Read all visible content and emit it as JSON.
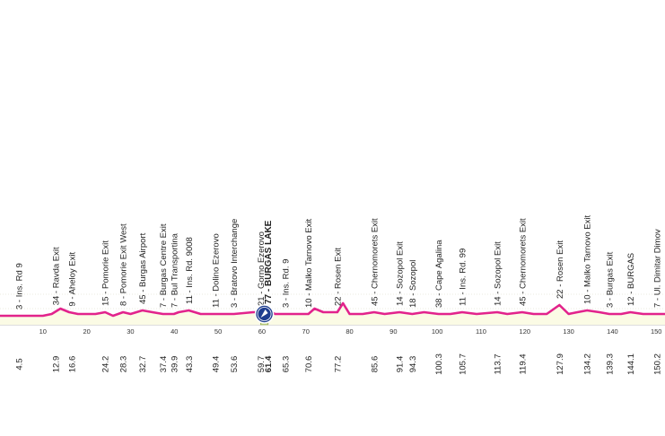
{
  "chart_data": {
    "type": "area",
    "xlim": [
      0,
      152
    ],
    "x_ticks": [
      10,
      20,
      30,
      40,
      50,
      60,
      70,
      80,
      90,
      100,
      110,
      120,
      130,
      140,
      150
    ],
    "profile": {
      "x": [
        0,
        6,
        10,
        12,
        14,
        16,
        18,
        20,
        22,
        24.2,
        26,
        28.3,
        30,
        32.7,
        35,
        37.4,
        39.9,
        41,
        43.3,
        46,
        49.4,
        53.6,
        58,
        59.7,
        61.4,
        63,
        65.3,
        68,
        70.6,
        72,
        74,
        77.2,
        78.5,
        80,
        83,
        85.6,
        88,
        91.4,
        94.3,
        97,
        100.3,
        103,
        105.7,
        109,
        113.7,
        116,
        119.4,
        122,
        125,
        127.9,
        130,
        132,
        134.2,
        137,
        139.3,
        142,
        144.1,
        147,
        150.2,
        152
      ],
      "y": [
        5,
        5,
        5,
        6,
        9,
        7,
        6,
        6,
        6,
        7,
        5,
        7,
        6,
        8,
        7,
        6,
        6,
        7,
        8,
        6,
        6,
        6,
        7,
        7,
        8,
        6,
        6,
        6,
        6,
        9,
        7,
        7,
        12,
        6,
        6,
        7,
        6,
        7,
        6,
        7,
        6,
        6,
        7,
        6,
        7,
        6,
        7,
        6,
        6,
        11,
        6,
        7,
        8,
        7,
        6,
        6,
        7,
        6,
        6,
        6
      ],
      "ylim": [
        0,
        40
      ],
      "color": "#e2238c",
      "fill": "#fbfbe5"
    },
    "highlight": {
      "x_start": 59.7,
      "x_end": 61.4,
      "color": "#c8dd8e",
      "badge_icon": "sprint-finish-icon"
    },
    "waypoints": [
      {
        "km": "4.5",
        "x": 4.5,
        "name": "3 - Ins. Rd 9"
      },
      {
        "km": "12.9",
        "x": 12.9,
        "name": "34 - Ravda Exit"
      },
      {
        "km": "16.6",
        "x": 16.6,
        "name": "9 - Aheloy Exit"
      },
      {
        "km": "24.2",
        "x": 24.2,
        "name": "15 - Pomorie Exit"
      },
      {
        "km": "28.3",
        "x": 28.3,
        "name": "8 - Pomorie Exit West"
      },
      {
        "km": "32.7",
        "x": 32.7,
        "name": "45 - Burgas Airport"
      },
      {
        "km": "37.4",
        "x": 37.4,
        "name": "7 - Burgas Centre Exit"
      },
      {
        "km": "39.9",
        "x": 39.9,
        "name": "7 - Bul Transportina"
      },
      {
        "km": "43.3",
        "x": 43.3,
        "name": "11 - Ins. Rd. 9008"
      },
      {
        "km": "49.4",
        "x": 49.4,
        "name": "11 - Dolino Ezerovo"
      },
      {
        "km": "53.6",
        "x": 53.6,
        "name": "3 - Bratovo Interchange"
      },
      {
        "km": "59.7",
        "x": 59.7,
        "name": "21 - Gorno Ezerovo"
      },
      {
        "km": "61.4",
        "x": 61.4,
        "name": "77 - BURGAS LAKE",
        "bold": true
      },
      {
        "km": "65.3",
        "x": 65.3,
        "name": "3 - Ins. Rd. 9"
      },
      {
        "km": "70.6",
        "x": 70.6,
        "name": "10 - Malko Tarnovo Exit"
      },
      {
        "km": "77.2",
        "x": 77.2,
        "name": "22 - Rosen Exit"
      },
      {
        "km": "85.6",
        "x": 85.6,
        "name": "45 - Chernomorets Exit"
      },
      {
        "km": "91.4",
        "x": 91.4,
        "name": "14 - Sozopol Exit"
      },
      {
        "km": "94.3",
        "x": 94.3,
        "name": "18 - Sozopol"
      },
      {
        "km": "100.3",
        "x": 100.3,
        "name": "38 - Cape Agalina"
      },
      {
        "km": "105.7",
        "x": 105.7,
        "name": "11 - Ins. Rd. 99"
      },
      {
        "km": "113.7",
        "x": 113.7,
        "name": "14 - Sozopol Exit"
      },
      {
        "km": "119.4",
        "x": 119.4,
        "name": "45 - Chernomorets Exit"
      },
      {
        "km": "127.9",
        "x": 127.9,
        "name": "22 - Rosen Exit"
      },
      {
        "km": "134.2",
        "x": 134.2,
        "name": "10 - Malko Tarnovo Exit"
      },
      {
        "km": "139.3",
        "x": 139.3,
        "name": "3 - Burgas Exit"
      },
      {
        "km": "144.1",
        "x": 144.1,
        "name": "12 - BURGAS"
      },
      {
        "km": "150.2",
        "x": 150.2,
        "name": "7 - Ul. Dimitar Dimov"
      }
    ]
  }
}
